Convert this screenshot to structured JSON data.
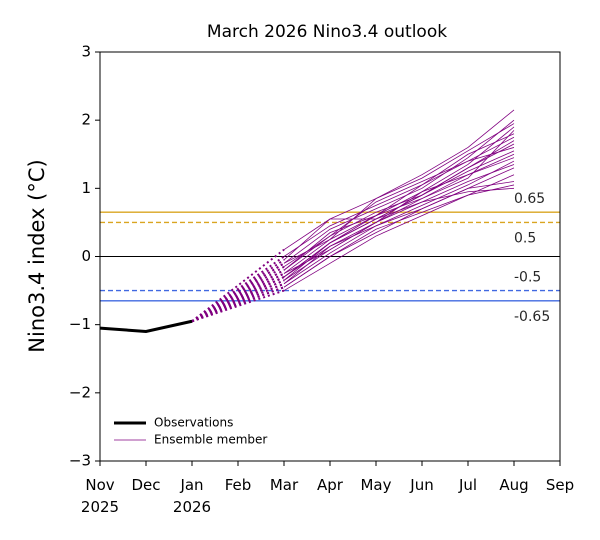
{
  "chart_data": {
    "type": "line",
    "title": "March 2026 Nino3.4 outlook",
    "ylabel": "Nino3.4 index (°C)",
    "categories": [
      "Nov\n2025",
      "Dec",
      "Jan\n2026",
      "Feb",
      "Mar",
      "Apr",
      "May",
      "Jun",
      "Jul",
      "Aug",
      "Sep"
    ],
    "ylim": [
      -3,
      3
    ],
    "yticks": [
      {
        "value": -3,
        "label": "−3"
      },
      {
        "value": -2,
        "label": "−2"
      },
      {
        "value": -1,
        "label": "−1"
      },
      0,
      1,
      2,
      3
    ],
    "series": [
      {
        "name": "Observations",
        "color": "#000000",
        "values": [
          -1.05,
          -1.1,
          -0.95,
          null,
          null,
          null,
          null,
          null,
          null,
          null,
          null
        ]
      }
    ],
    "ensemble": {
      "name": "Ensemble member",
      "color": "#800080",
      "members": [
        [
          null,
          null,
          null,
          null,
          -0.45,
          0.0,
          0.35,
          0.7,
          1.0,
          1.3,
          null
        ],
        [
          null,
          null,
          null,
          null,
          -0.3,
          0.2,
          0.55,
          0.9,
          1.3,
          1.7,
          null
        ],
        [
          null,
          null,
          null,
          null,
          -0.2,
          0.3,
          0.8,
          1.1,
          1.4,
          1.6,
          null
        ],
        [
          null,
          null,
          null,
          null,
          0.1,
          0.55,
          0.85,
          1.2,
          1.6,
          2.15,
          null
        ],
        [
          null,
          null,
          null,
          null,
          -0.5,
          -0.1,
          0.3,
          0.6,
          0.9,
          1.05,
          null
        ],
        [
          null,
          null,
          null,
          null,
          -0.35,
          0.1,
          0.5,
          0.85,
          1.2,
          1.5,
          null
        ],
        [
          null,
          null,
          null,
          null,
          -0.25,
          0.25,
          0.6,
          0.95,
          1.35,
          1.9,
          null
        ],
        [
          null,
          null,
          null,
          null,
          -0.4,
          0.05,
          0.45,
          0.75,
          1.05,
          1.4,
          null
        ],
        [
          null,
          null,
          null,
          null,
          -0.1,
          0.4,
          0.7,
          1.0,
          1.45,
          2.0,
          null
        ],
        [
          null,
          null,
          null,
          null,
          -0.3,
          0.15,
          0.5,
          0.8,
          0.95,
          1.0,
          null
        ],
        [
          null,
          null,
          null,
          null,
          -0.2,
          0.35,
          0.6,
          1.05,
          1.5,
          1.8,
          null
        ],
        [
          null,
          null,
          null,
          null,
          -0.45,
          0.0,
          0.4,
          0.65,
          0.9,
          1.2,
          null
        ],
        [
          null,
          null,
          null,
          null,
          0.0,
          0.45,
          0.75,
          1.05,
          1.4,
          1.75,
          null
        ],
        [
          null,
          null,
          null,
          null,
          -0.15,
          0.3,
          0.65,
          0.9,
          1.25,
          1.55,
          null
        ],
        [
          null,
          null,
          null,
          null,
          -0.35,
          0.2,
          0.55,
          0.8,
          1.1,
          1.35,
          null
        ],
        [
          null,
          null,
          null,
          null,
          -0.05,
          0.55,
          0.55,
          0.9,
          1.3,
          1.65,
          null
        ],
        [
          null,
          null,
          null,
          null,
          -0.25,
          0.1,
          0.5,
          0.95,
          1.2,
          1.45,
          null
        ],
        [
          null,
          null,
          null,
          null,
          -0.4,
          0.15,
          0.45,
          0.7,
          1.0,
          1.1,
          null
        ],
        [
          null,
          null,
          null,
          null,
          -0.1,
          0.25,
          0.85,
          1.15,
          1.55,
          1.95,
          null
        ],
        [
          null,
          null,
          null,
          null,
          -0.3,
          0.2,
          0.6,
          0.85,
          1.15,
          1.85,
          null
        ]
      ]
    },
    "reference_lines": [
      {
        "value": 0.65,
        "color": "#daa520",
        "style": "solid",
        "labeled": true
      },
      {
        "value": 0.5,
        "color": "#daa520",
        "style": "dashed",
        "labeled": true
      },
      {
        "value": 0,
        "color": "#000000",
        "style": "solid",
        "labeled": false
      },
      {
        "value": -0.5,
        "color": "#4169e1",
        "style": "dashed",
        "labeled": true
      },
      {
        "value": -0.65,
        "color": "#4169e1",
        "style": "solid",
        "labeled": true
      }
    ],
    "legend": "lower left"
  }
}
